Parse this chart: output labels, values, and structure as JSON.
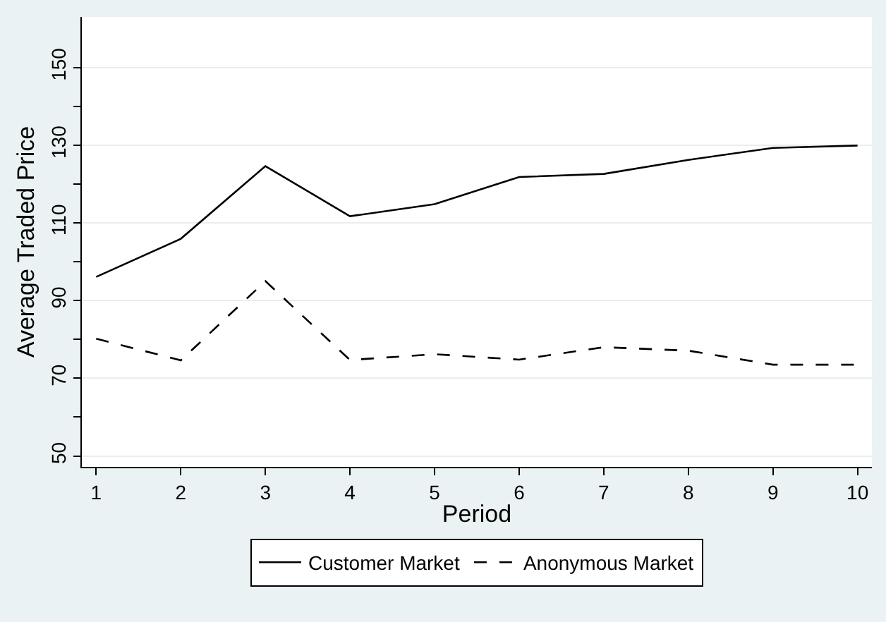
{
  "chart_data": {
    "type": "line",
    "xlabel": "Period",
    "ylabel": "Average Traded Price",
    "x": [
      1,
      2,
      3,
      4,
      5,
      6,
      7,
      8,
      9,
      10
    ],
    "series": [
      {
        "name": "Customer Market",
        "color": "#000000",
        "line_style": "solid",
        "values": [
          96.1,
          105.9,
          124.6,
          111.7,
          114.8,
          121.8,
          122.6,
          126.2,
          129.3,
          129.9
        ]
      },
      {
        "name": "Anonymous Market",
        "color": "#000000",
        "line_style": "dashed",
        "values": [
          80.2,
          74.6,
          95.0,
          74.7,
          76.2,
          74.8,
          78.0,
          77.1,
          73.5,
          73.5
        ]
      }
    ],
    "xlim": [
      0.83,
      10.17
    ],
    "xticks": [
      1,
      2,
      3,
      4,
      5,
      6,
      7,
      8,
      9,
      10
    ],
    "ylim": [
      47.2,
      163
    ],
    "yticks": [
      50,
      {
        "value": 60,
        "label": null
      },
      70,
      {
        "value": 80,
        "label": null
      },
      90,
      {
        "value": 100,
        "label": null
      },
      110,
      {
        "value": 120,
        "label": null
      },
      130,
      {
        "value": 140,
        "label": null
      },
      150
    ],
    "grid": "y",
    "legend": "bottom",
    "marker": "none"
  }
}
